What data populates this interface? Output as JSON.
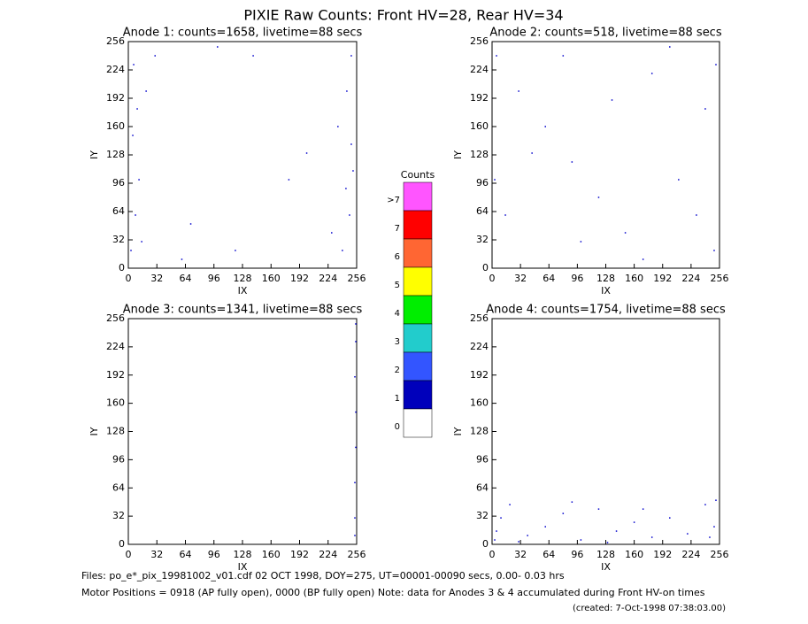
{
  "title": "PIXIE Raw Counts:  Front HV=28, Rear HV=34",
  "chart_data": [
    {
      "type": "scatter",
      "title": "Anode 1: counts=1658, livetime=88 secs",
      "xlabel": "IX",
      "ylabel": "IY",
      "color": "#0000cc",
      "xlim": [
        0,
        256
      ],
      "ylim": [
        0,
        256
      ],
      "xticks": [
        0,
        32,
        64,
        96,
        128,
        160,
        192,
        224,
        256
      ],
      "yticks": [
        0,
        32,
        64,
        96,
        128,
        160,
        192,
        224,
        256
      ],
      "x": [
        3,
        8,
        12,
        5,
        20,
        30,
        15,
        240,
        248,
        252,
        235,
        245,
        250,
        228,
        100,
        140,
        60,
        200,
        180,
        120,
        10,
        250,
        6,
        244,
        70
      ],
      "y": [
        20,
        60,
        100,
        150,
        200,
        240,
        30,
        20,
        60,
        110,
        160,
        200,
        240,
        40,
        250,
        240,
        10,
        130,
        100,
        20,
        180,
        140,
        230,
        90,
        50
      ]
    },
    {
      "type": "scatter",
      "title": "Anode 2: counts=518, livetime=88 secs",
      "xlabel": "IX",
      "ylabel": "IY",
      "color": "#0000cc",
      "xlim": [
        0,
        256
      ],
      "ylim": [
        0,
        256
      ],
      "xticks": [
        0,
        32,
        64,
        96,
        128,
        160,
        192,
        224,
        256
      ],
      "yticks": [
        0,
        32,
        64,
        96,
        128,
        160,
        192,
        224,
        256
      ],
      "x": [
        5,
        30,
        60,
        90,
        120,
        150,
        180,
        210,
        240,
        250,
        15,
        100,
        200,
        45,
        170,
        230,
        80,
        135,
        3,
        252
      ],
      "y": [
        240,
        200,
        160,
        120,
        80,
        40,
        220,
        100,
        180,
        20,
        60,
        30,
        250,
        130,
        10,
        60,
        240,
        190,
        100,
        230
      ]
    },
    {
      "type": "scatter",
      "title": "Anode 3: counts=1341, livetime=88 secs",
      "xlabel": "IX",
      "ylabel": "IY",
      "color": "#0000cc",
      "xlim": [
        0,
        256
      ],
      "ylim": [
        0,
        256
      ],
      "xticks": [
        0,
        32,
        64,
        96,
        128,
        160,
        192,
        224,
        256
      ],
      "yticks": [
        0,
        32,
        64,
        96,
        128,
        160,
        192,
        224,
        256
      ],
      "x": [
        254,
        254,
        255,
        255,
        254,
        255,
        254,
        255
      ],
      "y": [
        30,
        70,
        110,
        150,
        190,
        230,
        10,
        250
      ]
    },
    {
      "type": "scatter",
      "title": "Anode 4: counts=1754, livetime=88 secs",
      "xlabel": "IX",
      "ylabel": "IY",
      "color": "#0000cc",
      "xlim": [
        0,
        256
      ],
      "ylim": [
        0,
        256
      ],
      "xticks": [
        0,
        32,
        64,
        96,
        128,
        160,
        192,
        224,
        256
      ],
      "yticks": [
        0,
        32,
        64,
        96,
        128,
        160,
        192,
        224,
        256
      ],
      "x": [
        3,
        10,
        20,
        40,
        60,
        80,
        100,
        120,
        140,
        160,
        180,
        200,
        220,
        240,
        250,
        252,
        5,
        130,
        90,
        245,
        30,
        170
      ],
      "y": [
        5,
        30,
        45,
        10,
        20,
        35,
        5,
        40,
        15,
        25,
        8,
        30,
        12,
        45,
        20,
        50,
        15,
        2,
        48,
        8,
        3,
        40
      ]
    }
  ],
  "colorbar": {
    "title": "Counts",
    "levels": [
      {
        "label": ">7",
        "color": "#ff55ff"
      },
      {
        "label": "7",
        "color": "#ff0000"
      },
      {
        "label": "6",
        "color": "#ff6633"
      },
      {
        "label": "5",
        "color": "#ffff00"
      },
      {
        "label": "4",
        "color": "#00ee00"
      },
      {
        "label": "3",
        "color": "#22cccc"
      },
      {
        "label": "2",
        "color": "#3355ff"
      },
      {
        "label": "1",
        "color": "#0000bb"
      },
      {
        "label": "0",
        "color": "#ffffff"
      }
    ]
  },
  "footer": [
    "Files: po_e*_pix_19981002_v01.cdf   02 OCT 1998, DOY=275, UT=00001-00090 secs,  0.00- 0.03 hrs",
    "Motor Positions = 0918 (AP fully open), 0000 (BP fully open)   Note: data for Anodes 3 & 4 accumulated during Front HV-on times",
    "(created:  7-Oct-1998 07:38:03.00)"
  ]
}
